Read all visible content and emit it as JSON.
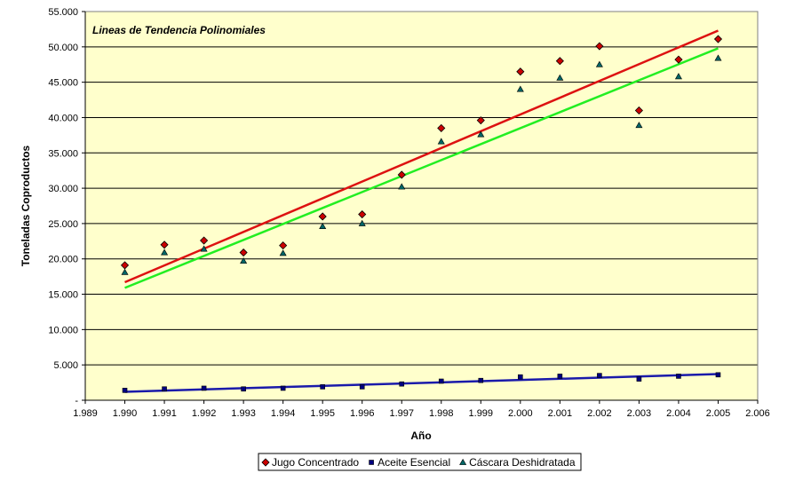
{
  "chart_data": {
    "type": "scatter",
    "annotation": "Lineas de Tendencia Polinomiales",
    "xlabel": "Año",
    "ylabel": "Toneladas Coproductos",
    "xlim": [
      1989,
      2006
    ],
    "ylim": [
      0,
      55000
    ],
    "x_ticks": [
      1989,
      1990,
      1991,
      1992,
      1993,
      1994,
      1995,
      1996,
      1997,
      1998,
      1999,
      2000,
      2001,
      2002,
      2003,
      2004,
      2005,
      2006
    ],
    "x_tick_labels": [
      "1.989",
      "1.990",
      "1.991",
      "1.992",
      "1.993",
      "1.994",
      "1.995",
      "1.996",
      "1.997",
      "1.998",
      "1.999",
      "2.000",
      "2.001",
      "2.002",
      "2.003",
      "2.004",
      "2.005",
      "2.006"
    ],
    "y_ticks": [
      0,
      5000,
      10000,
      15000,
      20000,
      25000,
      30000,
      35000,
      40000,
      45000,
      50000,
      55000
    ],
    "y_tick_labels": [
      "-",
      "5.000",
      "10.000",
      "15.000",
      "20.000",
      "25.000",
      "30.000",
      "35.000",
      "40.000",
      "45.000",
      "50.000",
      "55.000"
    ],
    "grid": "horizontal",
    "plot_background": "#ffffcc",
    "legend_position": "bottom",
    "x": [
      1990,
      1991,
      1992,
      1993,
      1994,
      1995,
      1996,
      1997,
      1998,
      1999,
      2000,
      2001,
      2002,
      2003,
      2004,
      2005
    ],
    "series": [
      {
        "name": "Jugo Concentrado",
        "marker": "diamond",
        "color": "#cc0000",
        "trend_color": "#dd1111",
        "values": [
          19100,
          22000,
          22600,
          20900,
          21900,
          26000,
          26300,
          31900,
          38500,
          39600,
          46500,
          48000,
          50100,
          41000,
          48200,
          51100
        ],
        "trend": [
          16700,
          52300
        ]
      },
      {
        "name": "Aceite Esencial",
        "marker": "square",
        "color": "#000080",
        "trend_color": "#1a1aaa",
        "values": [
          1400,
          1600,
          1700,
          1600,
          1700,
          1900,
          1900,
          2300,
          2700,
          2800,
          3300,
          3400,
          3500,
          3000,
          3400,
          3600
        ],
        "trend": [
          1200,
          3700
        ]
      },
      {
        "name": "Cáscara Deshidratada",
        "marker": "triangle",
        "color": "#006666",
        "trend_color": "#22ee22",
        "values": [
          18100,
          20900,
          21400,
          19700,
          20800,
          24600,
          25000,
          30200,
          36600,
          37600,
          44000,
          45600,
          47500,
          38900,
          45800,
          48400
        ],
        "trend": [
          15900,
          49800
        ]
      }
    ]
  }
}
